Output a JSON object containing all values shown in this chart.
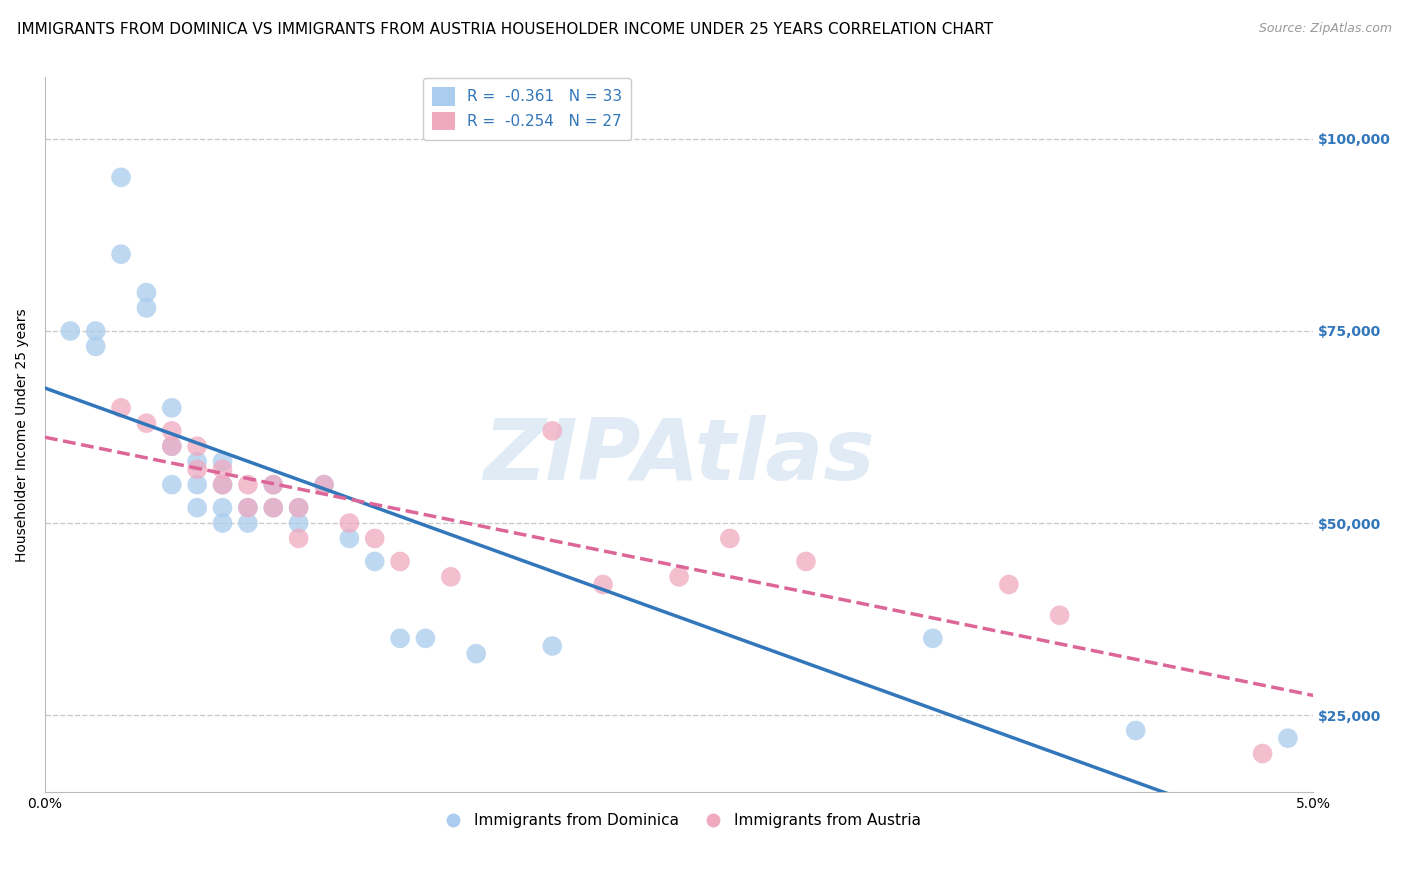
{
  "title": "IMMIGRANTS FROM DOMINICA VS IMMIGRANTS FROM AUSTRIA HOUSEHOLDER INCOME UNDER 25 YEARS CORRELATION CHART",
  "source": "Source: ZipAtlas.com",
  "ylabel": "Householder Income Under 25 years",
  "xlim": [
    0.0,
    0.05
  ],
  "ylim": [
    15000,
    108000
  ],
  "yticks": [
    25000,
    50000,
    75000,
    100000
  ],
  "ytick_labels": [
    "$25,000",
    "$50,000",
    "$75,000",
    "$100,000"
  ],
  "xticks": [
    0.0,
    0.01,
    0.02,
    0.03,
    0.04,
    0.05
  ],
  "xtick_labels": [
    "0.0%",
    "",
    "",
    "",
    "",
    "5.0%"
  ],
  "watermark": "ZIPAtlas",
  "legend_r1": "R =  -0.361",
  "legend_n1": "N = 33",
  "legend_r2": "R =  -0.254",
  "legend_n2": "N = 27",
  "dominica_color": "#aaccee",
  "austria_color": "#f0aac0",
  "dominica_line_color": "#3377bb",
  "austria_line_color": "#dd6699",
  "background_color": "#ffffff",
  "grid_color": "#cccccc",
  "dominica_x": [
    0.001,
    0.002,
    0.002,
    0.003,
    0.003,
    0.004,
    0.004,
    0.005,
    0.005,
    0.005,
    0.006,
    0.006,
    0.006,
    0.007,
    0.007,
    0.007,
    0.007,
    0.008,
    0.008,
    0.009,
    0.009,
    0.01,
    0.01,
    0.011,
    0.012,
    0.013,
    0.014,
    0.015,
    0.017,
    0.02,
    0.035,
    0.043,
    0.049
  ],
  "dominica_y": [
    75000,
    75000,
    73000,
    95000,
    85000,
    80000,
    78000,
    65000,
    60000,
    55000,
    58000,
    55000,
    52000,
    58000,
    55000,
    52000,
    50000,
    52000,
    50000,
    55000,
    52000,
    52000,
    50000,
    55000,
    48000,
    45000,
    35000,
    35000,
    33000,
    34000,
    35000,
    23000,
    22000
  ],
  "austria_x": [
    0.003,
    0.004,
    0.005,
    0.005,
    0.006,
    0.006,
    0.007,
    0.007,
    0.008,
    0.008,
    0.009,
    0.009,
    0.01,
    0.01,
    0.011,
    0.012,
    0.013,
    0.014,
    0.016,
    0.02,
    0.022,
    0.025,
    0.027,
    0.03,
    0.038,
    0.04,
    0.048
  ],
  "austria_y": [
    65000,
    63000,
    62000,
    60000,
    60000,
    57000,
    57000,
    55000,
    55000,
    52000,
    55000,
    52000,
    52000,
    48000,
    55000,
    50000,
    48000,
    45000,
    43000,
    62000,
    42000,
    43000,
    48000,
    45000,
    42000,
    38000,
    20000
  ],
  "title_fontsize": 11,
  "axis_fontsize": 10,
  "tick_fontsize": 10,
  "legend_fontsize": 11
}
